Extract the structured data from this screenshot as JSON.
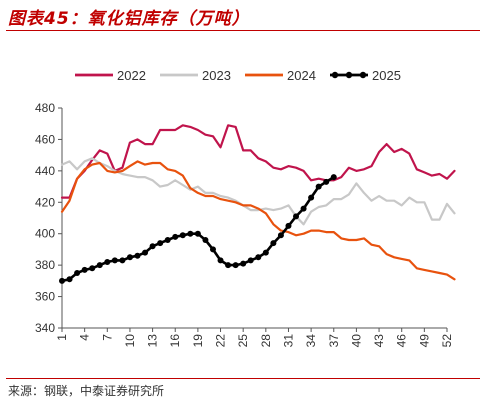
{
  "header": {
    "title": "图表45：氧化铝库存（万吨）",
    "source": "来源：钢联，中泰证券研究所"
  },
  "chart_data": {
    "type": "line",
    "title": "图表45：氧化铝库存（万吨）",
    "xlabel": "",
    "ylabel": "",
    "ylim": [
      340,
      480
    ],
    "yticks": [
      340,
      360,
      380,
      400,
      420,
      440,
      460,
      480
    ],
    "xlim": [
      1,
      52
    ],
    "xticks": [
      1,
      4,
      7,
      10,
      13,
      16,
      19,
      22,
      25,
      28,
      31,
      34,
      37,
      40,
      43,
      46,
      49,
      52
    ],
    "grid": false,
    "legend": "top",
    "series": [
      {
        "name": "2022",
        "color": "#c0144c",
        "marker": false,
        "values": [
          423,
          423,
          435,
          440,
          447,
          453,
          451,
          440,
          442,
          458,
          460,
          457,
          457,
          466,
          466,
          466,
          469,
          468,
          466,
          463,
          462,
          455,
          469,
          468,
          453,
          453,
          448,
          446,
          442,
          441,
          443,
          442,
          440,
          434,
          435,
          434,
          434,
          436,
          442,
          440,
          441,
          443,
          452,
          457,
          452,
          454,
          451,
          441,
          439,
          437,
          438,
          435,
          440
        ]
      },
      {
        "name": "2023",
        "color": "#c8c8c8",
        "marker": false,
        "values": [
          444,
          446,
          441,
          446,
          448,
          445,
          443,
          440,
          438,
          437,
          436,
          436,
          434,
          430,
          431,
          434,
          431,
          428,
          430,
          426,
          426,
          424,
          423,
          421,
          418,
          415,
          415,
          416,
          415,
          416,
          418,
          411,
          406,
          414,
          417,
          418,
          422,
          422,
          425,
          432,
          426,
          421,
          424,
          421,
          421,
          418,
          423,
          420,
          420,
          409,
          409,
          419,
          413
        ]
      },
      {
        "name": "2024",
        "color": "#e8520e",
        "marker": false,
        "values": [
          414,
          421,
          435,
          441,
          444,
          445,
          440,
          439,
          440,
          443,
          446,
          444,
          445,
          445,
          441,
          440,
          437,
          429,
          426,
          424,
          424,
          422,
          421,
          420,
          418,
          418,
          416,
          413,
          406,
          402,
          401,
          399,
          400,
          402,
          402,
          401,
          401,
          397,
          396,
          396,
          397,
          393,
          392,
          387,
          385,
          384,
          383,
          378,
          377,
          376,
          375,
          374,
          371
        ]
      },
      {
        "name": "2025",
        "color": "#000000",
        "marker": true,
        "values": [
          370,
          371,
          375,
          377,
          378,
          380,
          382,
          383,
          383,
          385,
          386,
          388,
          392,
          394,
          396,
          398,
          399,
          400,
          400,
          396,
          390,
          383,
          380,
          380,
          381,
          383,
          385,
          388,
          394,
          399,
          405,
          411,
          416,
          423,
          430,
          433,
          436
        ]
      }
    ]
  }
}
